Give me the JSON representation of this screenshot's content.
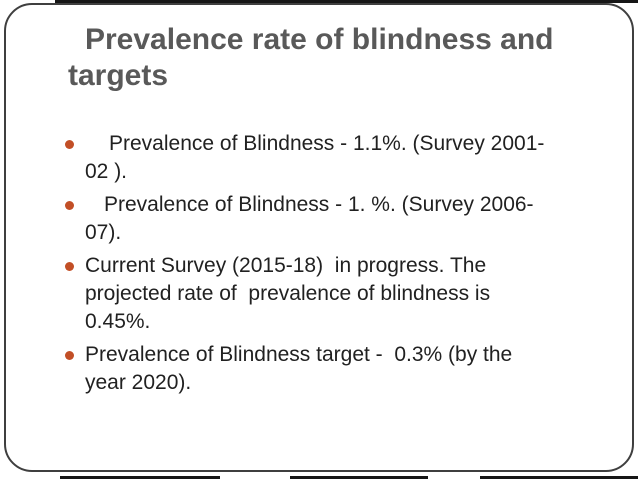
{
  "slide": {
    "title": "Prevalence rate of blindness and\ntargets",
    "bullets": [
      {
        "text": "Prevalence of Blindness - 1.1%. (Survey 2001-\n02 )."
      },
      {
        "text": "Prevalence of Blindness - 1. %. (Survey 2006-\n07)."
      },
      {
        "text": "Current Survey (2015-18)  in progress. The\nprojected rate of  prevalence of blindness is\n0.45%."
      },
      {
        "text": "Prevalence of Blindness target -  0.3% (by the\nyear 2020)."
      }
    ],
    "colors": {
      "title_text": "#595959",
      "body_text": "#212121",
      "bullet_dot": "#c24f26",
      "frame_border": "#3f3f3f",
      "edge_bar": "#161616",
      "background": "#ffffff"
    }
  }
}
